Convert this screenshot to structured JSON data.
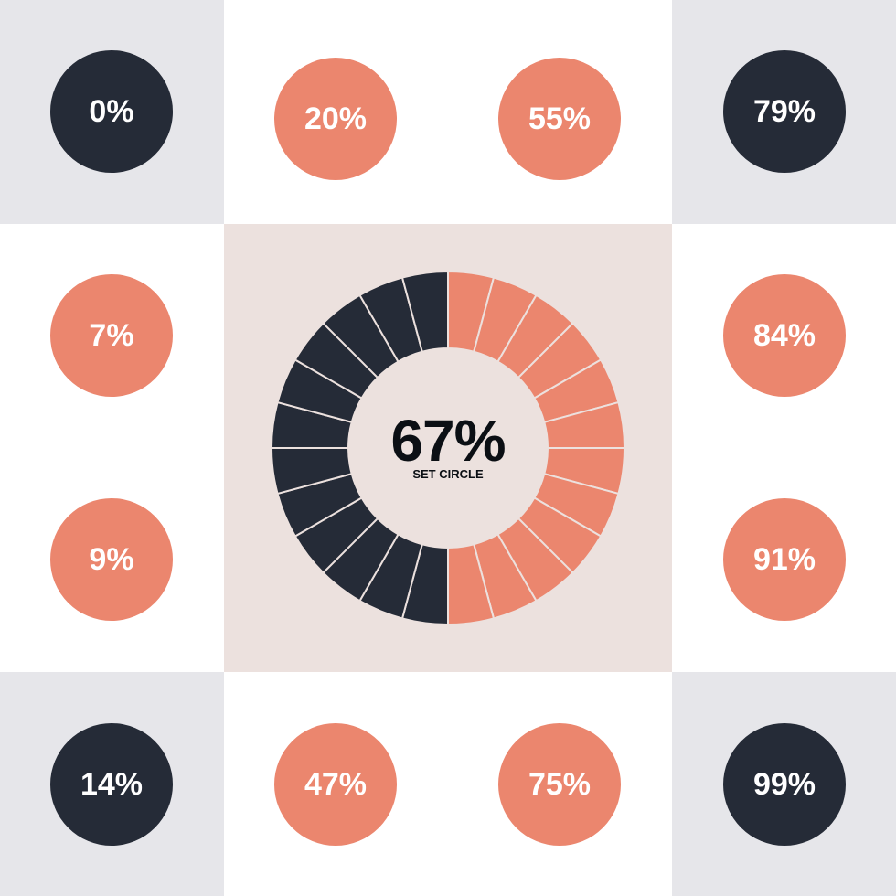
{
  "colors": {
    "dark": "#252b37",
    "accent": "#eb866e",
    "tile_gray": "#e6e6ea",
    "panel": "#ece1de",
    "divider": "#ece1de"
  },
  "circles": [
    {
      "label": "0%",
      "value": 0,
      "color": "dark"
    },
    {
      "label": "20%",
      "value": 20,
      "color": "accent"
    },
    {
      "label": "55%",
      "value": 55,
      "color": "accent"
    },
    {
      "label": "79%",
      "value": 79,
      "color": "dark"
    },
    {
      "label": "7%",
      "value": 7,
      "color": "accent"
    },
    {
      "label": "84%",
      "value": 84,
      "color": "accent"
    },
    {
      "label": "9%",
      "value": 9,
      "color": "accent"
    },
    {
      "label": "91%",
      "value": 91,
      "color": "accent"
    },
    {
      "label": "14%",
      "value": 14,
      "color": "dark"
    },
    {
      "label": "47%",
      "value": 47,
      "color": "accent"
    },
    {
      "label": "75%",
      "value": 75,
      "color": "accent"
    },
    {
      "label": "99%",
      "value": 99,
      "color": "dark"
    }
  ],
  "main": {
    "value_label": "67%",
    "caption": "SET CIRCLE",
    "segments": 24
  }
}
